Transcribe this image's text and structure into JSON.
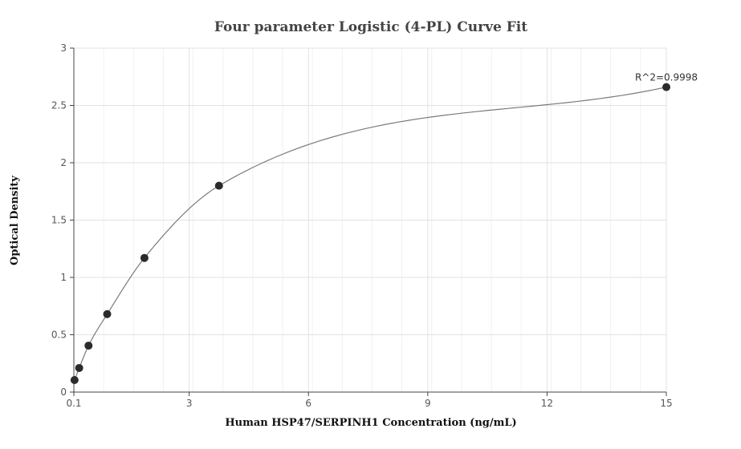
{
  "chart_data": {
    "type": "scatter",
    "title": "Four parameter Logistic (4-PL) Curve Fit",
    "xlabel": "Human HSP47/SERPINH1 Concentration (ng/mL)",
    "ylabel": "Optical Density",
    "xlim": [
      0.1,
      15
    ],
    "ylim": [
      0,
      3
    ],
    "x_ticks": [
      "0.1",
      "3",
      "6",
      "9",
      "12",
      "15"
    ],
    "y_ticks": [
      "0",
      "0.5",
      "1",
      "1.5",
      "2",
      "2.5",
      "3"
    ],
    "grid": true,
    "series": [
      {
        "points": [
          {
            "x": 0.117,
            "y": 0.105
          },
          {
            "x": 0.234,
            "y": 0.21
          },
          {
            "x": 0.469,
            "y": 0.405
          },
          {
            "x": 0.938,
            "y": 0.68
          },
          {
            "x": 1.875,
            "y": 1.17
          },
          {
            "x": 3.75,
            "y": 1.8
          },
          {
            "x": 15,
            "y": 2.66
          }
        ]
      }
    ],
    "fit": {
      "type": "4PL",
      "r_squared_label": "R^2=0.9998"
    }
  }
}
